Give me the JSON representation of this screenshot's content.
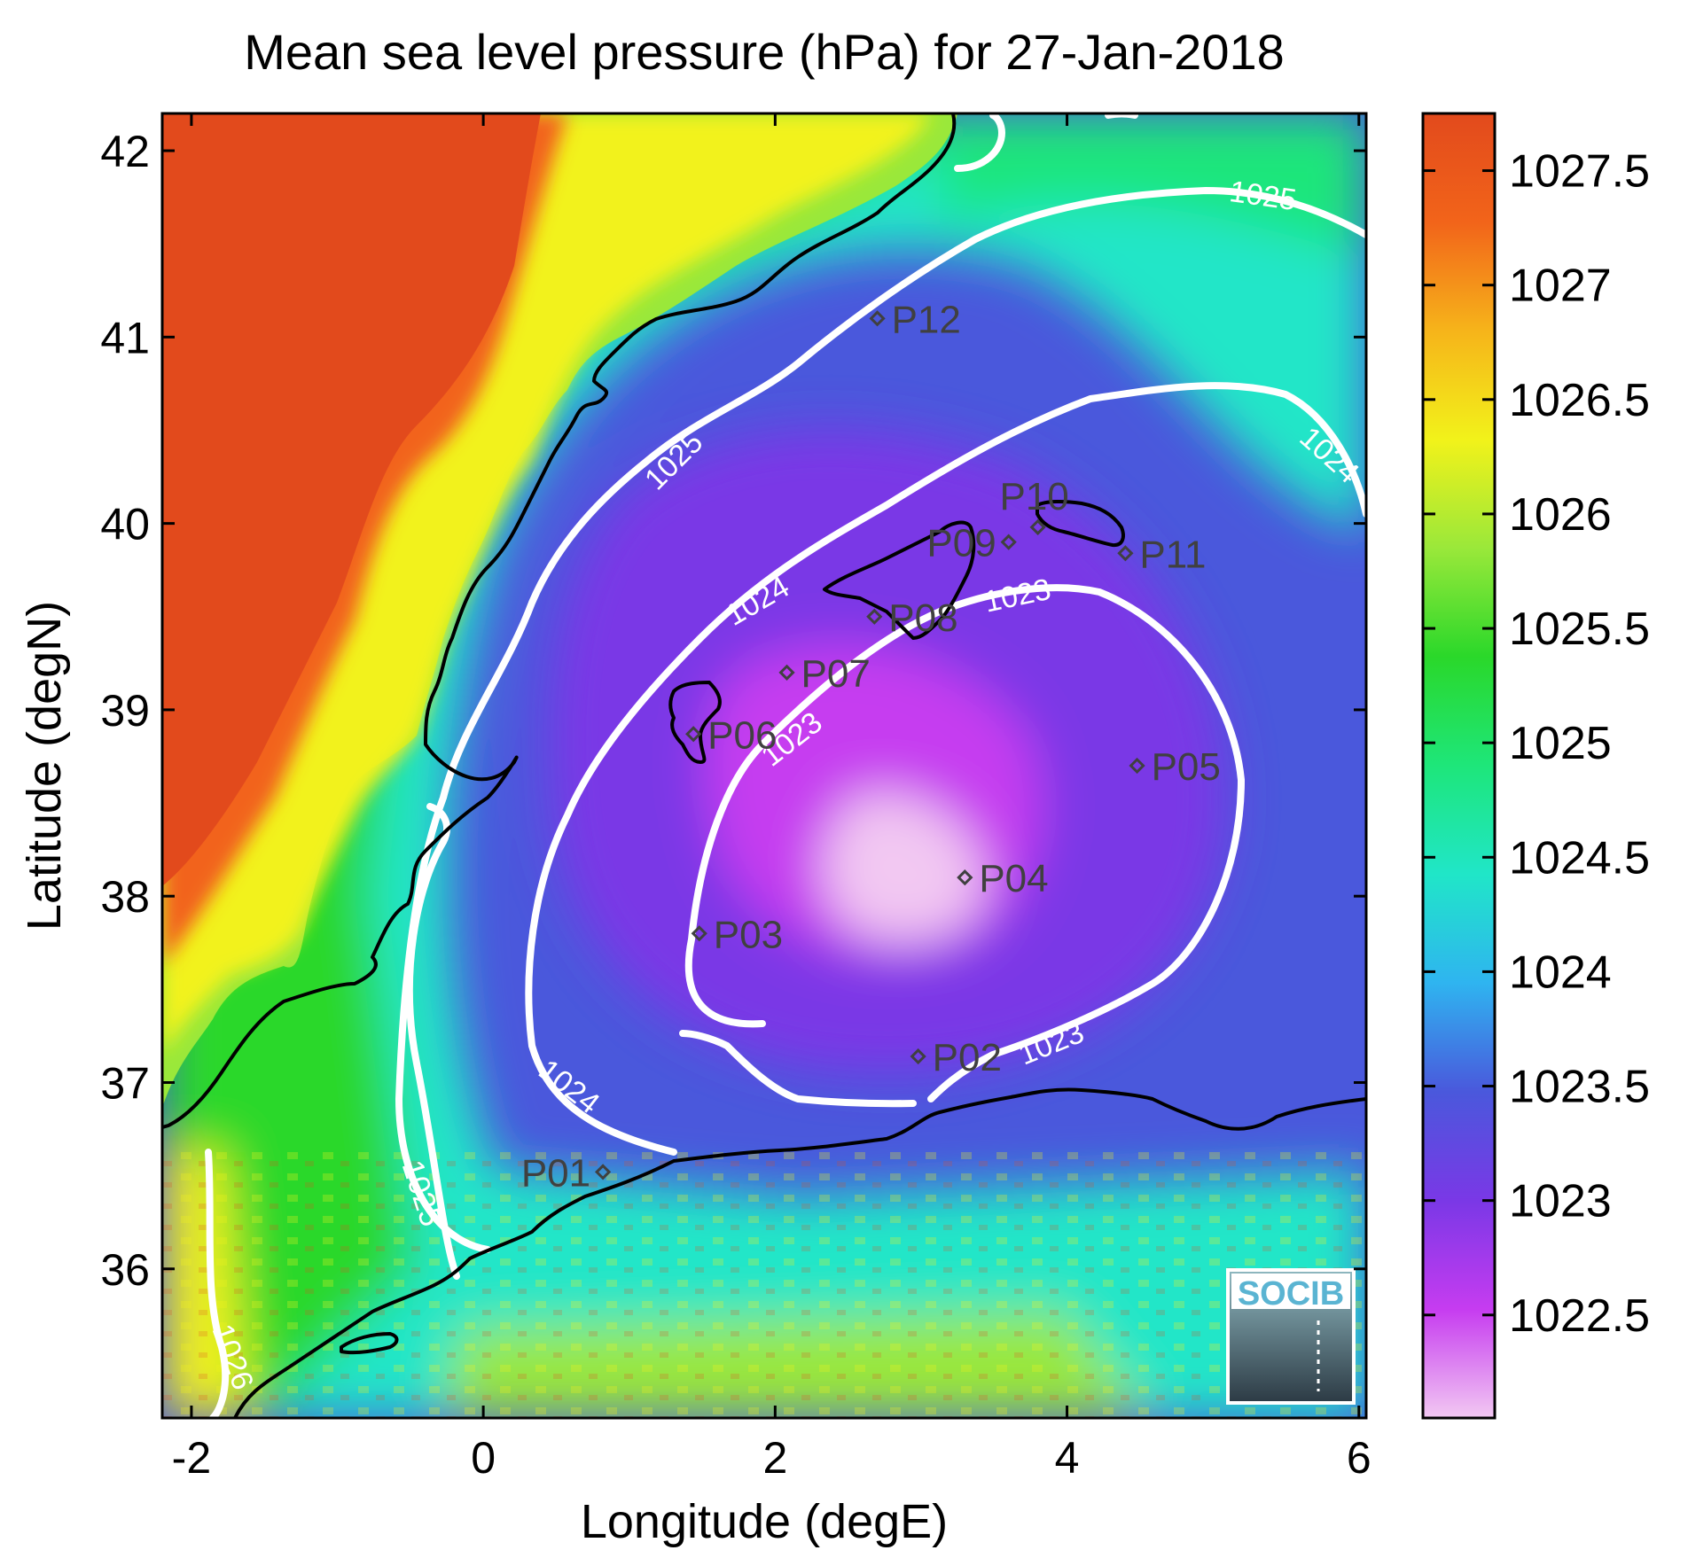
{
  "title": "Mean sea level pressure (hPa) for 27-Jan-2018",
  "map": {
    "lon_range": [
      -2.2,
      6.05
    ],
    "lat_range": [
      35.2,
      42.2
    ],
    "xlabel": "Longitude (degE)",
    "ylabel": "Latitude (degN)",
    "x_ticks": [
      {
        "value": -2,
        "label": "-2"
      },
      {
        "value": 0,
        "label": "0"
      },
      {
        "value": 2,
        "label": "2"
      },
      {
        "value": 4,
        "label": "4"
      },
      {
        "value": 6,
        "label": "6"
      }
    ],
    "y_ticks": [
      {
        "value": 36,
        "label": "36"
      },
      {
        "value": 37,
        "label": "37"
      },
      {
        "value": 38,
        "label": "38"
      },
      {
        "value": 39,
        "label": "39"
      },
      {
        "value": 40,
        "label": "40"
      },
      {
        "value": 41,
        "label": "41"
      },
      {
        "value": 42,
        "label": "42"
      }
    ],
    "land_color": "#e24a1c",
    "coastline_color": "#000000",
    "contour_color": "#ffffff"
  },
  "colorbar": {
    "range": [
      1022.05,
      1027.75
    ],
    "ticks": [
      "1022.5",
      "1023",
      "1023.5",
      "1024",
      "1024.5",
      "1025",
      "1025.5",
      "1026",
      "1026.5",
      "1027",
      "1027.5"
    ],
    "colors": [
      "#f2c8f2",
      "#c63cf0",
      "#7a38e6",
      "#4a58dc",
      "#2fb4f0",
      "#20e6c8",
      "#1ee67a",
      "#2ad82a",
      "#9ae83a",
      "#f2f21a",
      "#f6b41a",
      "#f2641a",
      "#e24a1c"
    ]
  },
  "contour_labels": [
    "1023",
    "1023",
    "1023",
    "1024",
    "1024",
    "1024",
    "1025",
    "1025",
    "1025",
    "1026"
  ],
  "stations": [
    {
      "name": "P01",
      "lon": 0.82,
      "lat": 36.52,
      "side": "left"
    },
    {
      "name": "P02",
      "lon": 2.98,
      "lat": 37.14,
      "side": "right"
    },
    {
      "name": "P03",
      "lon": 1.48,
      "lat": 37.8,
      "side": "right"
    },
    {
      "name": "P04",
      "lon": 3.3,
      "lat": 38.1,
      "side": "right"
    },
    {
      "name": "P05",
      "lon": 4.48,
      "lat": 38.7,
      "side": "right"
    },
    {
      "name": "P06",
      "lon": 1.44,
      "lat": 38.87,
      "side": "right"
    },
    {
      "name": "P07",
      "lon": 2.08,
      "lat": 39.2,
      "side": "right"
    },
    {
      "name": "P08",
      "lon": 2.68,
      "lat": 39.5,
      "side": "right"
    },
    {
      "name": "P09",
      "lon": 3.6,
      "lat": 39.9,
      "side": "left"
    },
    {
      "name": "P10",
      "lon": 3.8,
      "lat": 39.98,
      "side": "top"
    },
    {
      "name": "P11",
      "lon": 4.4,
      "lat": 39.84,
      "side": "right"
    },
    {
      "name": "P12",
      "lon": 2.7,
      "lat": 41.1,
      "side": "right"
    }
  ],
  "logo": {
    "text": "SOCIB",
    "color": "#5ab4d2"
  }
}
